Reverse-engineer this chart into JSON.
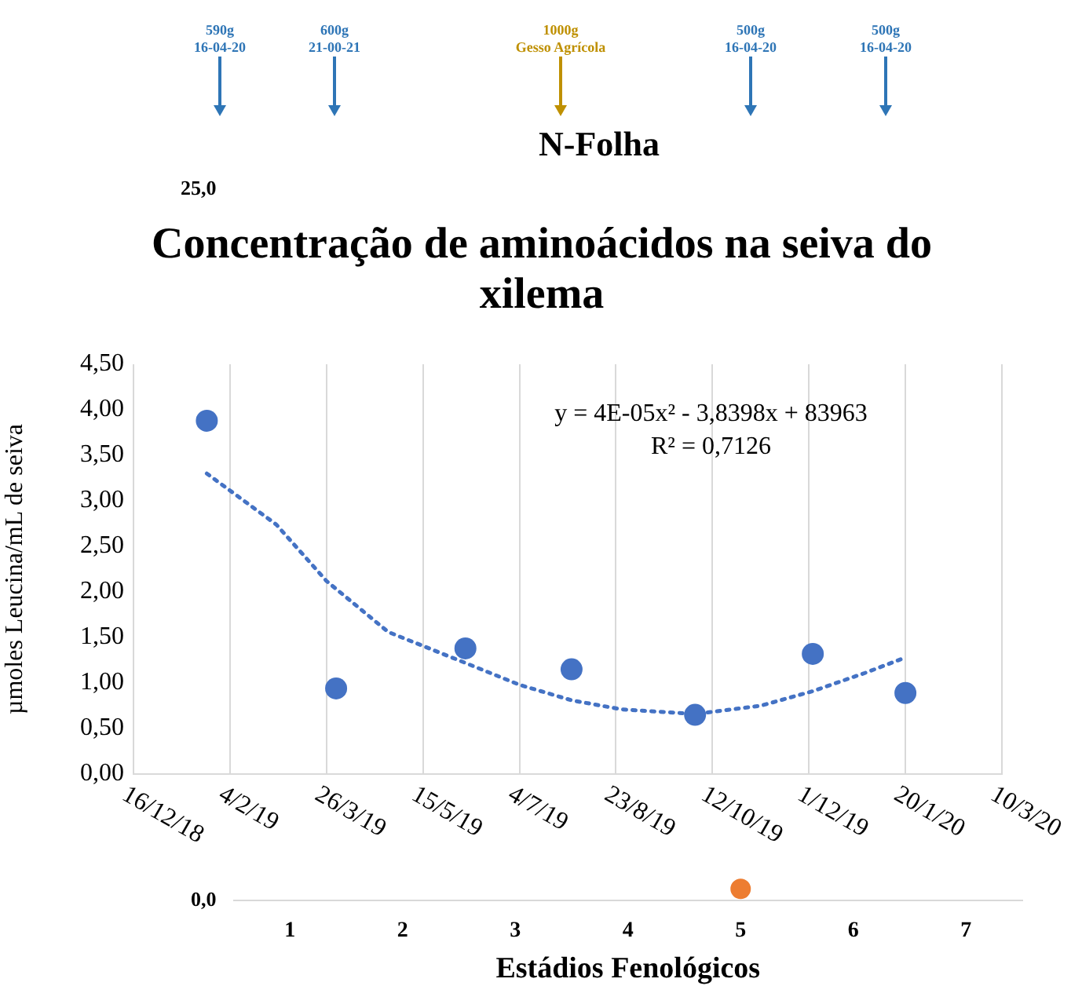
{
  "chart_data": [
    {
      "type": "line",
      "title": "N-Folha",
      "xlabel": "Estádios Fenológicos",
      "annotations": [
        "590g\n16-04-20",
        "600g\n21-00-21",
        "1000g\nGesso Agrícola",
        "500g\n16-04-20",
        "500g\n16-04-20"
      ],
      "categories": [
        "1",
        "2",
        "3",
        "4",
        "5",
        "6",
        "7"
      ],
      "series": [
        {
          "color": "#ed7d31",
          "values": [
            null,
            null,
            null,
            null,
            0.4,
            null,
            null
          ]
        }
      ],
      "ylim": [
        0,
        25
      ],
      "yticks": [
        {
          "value": 0,
          "label": "0,0"
        },
        {
          "value": 25,
          "label": "25,0"
        }
      ],
      "marker": "circle",
      "legend": false
    },
    {
      "type": "scatter",
      "title": "Concentração de aminoácidos na seiva do xilema",
      "ylabel": "µmoles Leucina/mL de seiva",
      "annotations": [
        "y = 4E-05x² - 3,8398x + 83963",
        "R² = 0,7126"
      ],
      "series": [
        {
          "type": "scatter",
          "color": "#4472c4",
          "marker": "circle",
          "x": [
            "2019-01-23",
            "2019-03-31",
            "2019-06-06",
            "2019-07-31",
            "2019-10-03",
            "2019-12-03",
            "2020-01-20"
          ],
          "values": [
            3.88,
            0.94,
            1.38,
            1.15,
            0.65,
            1.32,
            0.89
          ]
        },
        {
          "type": "line",
          "color": "#4472c4",
          "marker": "none",
          "line_style": "dotted",
          "x": [
            "2019-01-23",
            "2019-02-28",
            "2019-03-26",
            "2019-04-27",
            "2019-06-06",
            "2019-07-04",
            "2019-07-31",
            "2019-08-26",
            "2019-10-03",
            "2019-11-06",
            "2019-12-03",
            "2019-12-30",
            "2020-01-20"
          ],
          "values": [
            3.3,
            2.74,
            2.12,
            1.56,
            1.22,
            0.98,
            0.81,
            0.71,
            0.66,
            0.75,
            0.91,
            1.11,
            1.28
          ]
        }
      ],
      "xlim": [
        "2018-12-16",
        "2020-03-10"
      ],
      "xticks": [
        {
          "value": "2018-12-16",
          "label": "16/12/18"
        },
        {
          "value": "2019-02-04",
          "label": "4/2/19"
        },
        {
          "value": "2019-03-26",
          "label": "26/3/19"
        },
        {
          "value": "2019-05-15",
          "label": "15/5/19"
        },
        {
          "value": "2019-07-04",
          "label": "4/7/19"
        },
        {
          "value": "2019-08-23",
          "label": "23/8/19"
        },
        {
          "value": "2019-10-12",
          "label": "12/10/19"
        },
        {
          "value": "2019-12-01",
          "label": "1/12/19"
        },
        {
          "value": "2020-01-20",
          "label": "20/1/20"
        },
        {
          "value": "2020-03-10",
          "label": "10/3/20"
        }
      ],
      "ylim": [
        0,
        4.5
      ],
      "yticks": [
        {
          "value": 0,
          "label": "0,00"
        },
        {
          "value": 0.5,
          "label": "0,50"
        },
        {
          "value": 1,
          "label": "1,00"
        },
        {
          "value": 1.5,
          "label": "1,50"
        },
        {
          "value": 2,
          "label": "2,00"
        },
        {
          "value": 2.5,
          "label": "2,50"
        },
        {
          "value": 3,
          "label": "3,00"
        },
        {
          "value": 3.5,
          "label": "3,50"
        },
        {
          "value": 4,
          "label": "4,00"
        },
        {
          "value": 4.5,
          "label": "4,50"
        }
      ],
      "grid": "x",
      "legend": false
    }
  ]
}
